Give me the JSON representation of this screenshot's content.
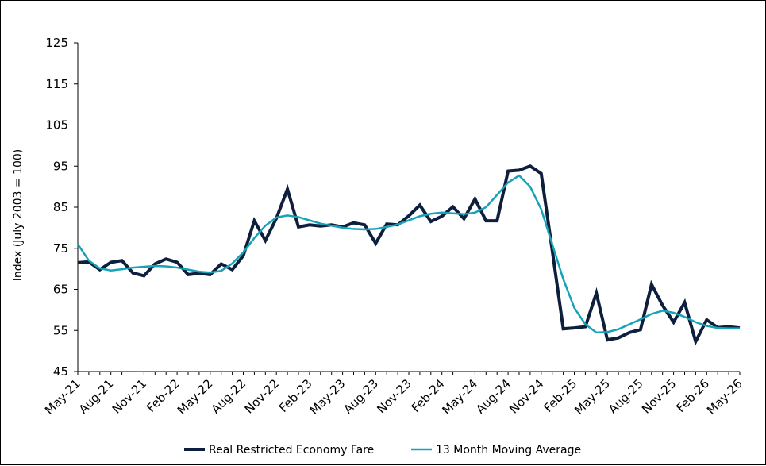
{
  "chart_data": {
    "type": "line",
    "ylabel": "Index (July 2003 = 100)",
    "xlabel": "",
    "ylim": [
      45,
      125
    ],
    "yticks": [
      45,
      55,
      65,
      75,
      85,
      95,
      105,
      115,
      125
    ],
    "xticks": [
      "May-21",
      "Aug-21",
      "Nov-21",
      "Feb-22",
      "May-22",
      "Aug-22",
      "Nov-22",
      "Feb-23",
      "May-23",
      "Aug-23",
      "Nov-23",
      "Feb-24",
      "May-24",
      "Aug-24",
      "Nov-24",
      "Feb-25",
      "May-25",
      "Aug-25",
      "Nov-25",
      "Feb-26",
      "May-26"
    ],
    "grid": false,
    "legend_position": "bottom",
    "colors": {
      "fare": "#0d1f3c",
      "moving_average": "#17a2b8"
    },
    "series": [
      {
        "name": "Real Restricted Economy Fare",
        "color_key": "fare",
        "values": [
          71.5,
          71.7,
          69.8,
          71.6,
          72.0,
          69.0,
          68.3,
          71.2,
          72.4,
          71.6,
          68.6,
          68.9,
          68.6,
          71.2,
          69.8,
          73.2,
          81.7,
          76.9,
          82.3,
          89.4,
          80.2,
          80.7,
          80.4,
          80.7,
          80.2,
          81.2,
          80.7,
          76.2,
          80.9,
          80.7,
          82.9,
          85.5,
          81.5,
          82.8,
          85.1,
          82.2,
          87.0,
          81.7,
          81.7,
          93.8,
          94.0,
          95.0,
          93.2,
          74.5,
          55.4,
          55.6,
          55.9,
          64.1,
          52.7,
          53.2,
          54.5,
          55.2,
          66.2,
          61.1,
          57.0,
          61.8,
          52.3,
          57.6,
          55.7,
          55.9,
          55.6
        ]
      },
      {
        "name": "13 Month Moving Average",
        "color_key": "moving_average",
        "values": [
          76.0,
          72.0,
          70.1,
          69.6,
          69.9,
          70.3,
          70.5,
          70.7,
          70.6,
          70.3,
          69.8,
          69.3,
          69.1,
          69.5,
          71.3,
          74.0,
          77.5,
          80.5,
          82.5,
          83.0,
          82.6,
          81.8,
          81.0,
          80.5,
          80.0,
          79.7,
          79.6,
          79.7,
          80.2,
          80.8,
          81.8,
          82.8,
          83.4,
          83.7,
          83.5,
          83.3,
          83.7,
          85.0,
          88.0,
          91.0,
          92.7,
          90.0,
          84.5,
          76.0,
          67.5,
          60.5,
          56.5,
          54.5,
          54.6,
          55.3,
          56.5,
          57.7,
          59.0,
          59.8,
          59.3,
          58.3,
          57.0,
          56.1,
          55.6,
          55.5,
          55.5
        ]
      }
    ]
  }
}
